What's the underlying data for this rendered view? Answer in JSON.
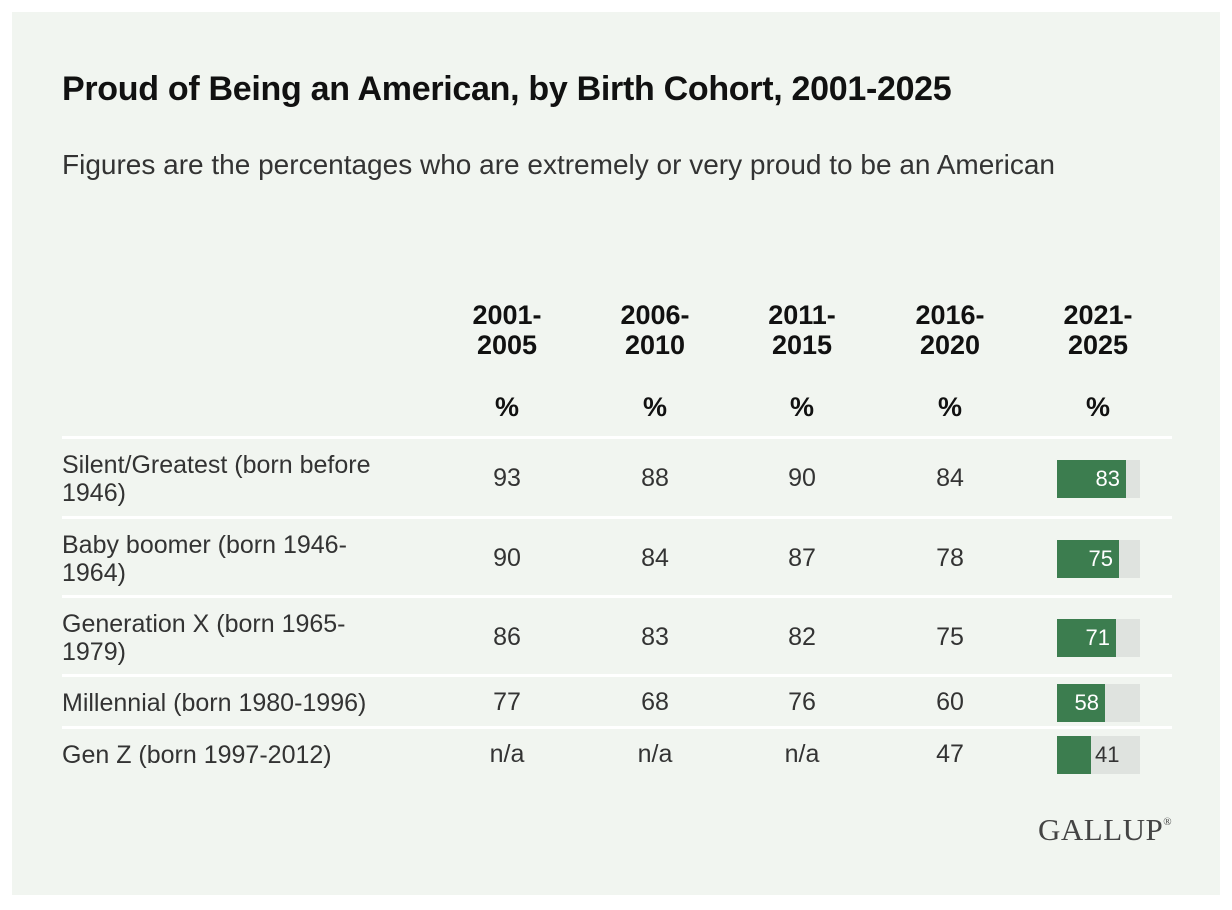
{
  "chart_data": {
    "type": "table",
    "title": "Proud of Being an American, by Birth Cohort, 2001-2025",
    "subtitle": "Figures are the percentages who are extremely or very proud to be an American",
    "columns": [
      "2001-2005",
      "2006-2010",
      "2011-2015",
      "2016-2020",
      "2021-2025"
    ],
    "unit": "%",
    "rows": [
      {
        "label": "Silent/Greatest (born before 1946)",
        "values": [
          "93",
          "88",
          "90",
          "84",
          "83"
        ],
        "bar": 83
      },
      {
        "label": "Baby boomer (born 1946-1964)",
        "values": [
          "90",
          "84",
          "87",
          "78",
          "75"
        ],
        "bar": 75
      },
      {
        "label": "Generation X (born 1965-1979)",
        "values": [
          "86",
          "83",
          "82",
          "75",
          "71"
        ],
        "bar": 71
      },
      {
        "label": "Millennial (born 1980-1996)",
        "values": [
          "77",
          "68",
          "76",
          "60",
          "58"
        ],
        "bar": 58
      },
      {
        "label": "Gen Z (born 1997-2012)",
        "values": [
          "n/a",
          "n/a",
          "n/a",
          "47",
          "41"
        ],
        "bar": 41
      }
    ],
    "bar_column": "2021-2025",
    "bar_max": 100,
    "colors": {
      "bar_fill": "#3c7d4f",
      "bar_track": "#dfe3df",
      "background": "#f1f5f0"
    }
  },
  "branding": {
    "logo_text": "GALLUP"
  }
}
